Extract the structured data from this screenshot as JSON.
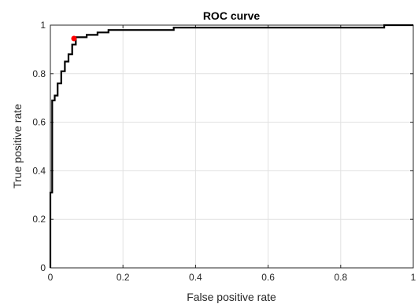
{
  "chart_data": {
    "type": "line",
    "title": "ROC curve",
    "xlabel": "False positive rate",
    "ylabel": "True positive rate",
    "xlim": [
      0,
      1
    ],
    "ylim": [
      0,
      1
    ],
    "grid": true,
    "x_ticks": [
      0,
      0.2,
      0.4,
      0.6,
      0.8,
      1
    ],
    "y_ticks": [
      0,
      0.2,
      0.4,
      0.6,
      0.8,
      1
    ],
    "x_tick_labels": [
      "0",
      "0.2",
      "0.4",
      "0.6",
      "0.8",
      "1"
    ],
    "y_tick_labels": [
      "0",
      "0.2",
      "0.4",
      "0.6",
      "0.8",
      "1"
    ],
    "series": [
      {
        "color": "#000000",
        "x": [
          0,
          0,
          0.005,
          0.005,
          0.012,
          0.012,
          0.02,
          0.02,
          0.03,
          0.03,
          0.04,
          0.04,
          0.05,
          0.05,
          0.06,
          0.06,
          0.07,
          0.07,
          0.1,
          0.1,
          0.13,
          0.13,
          0.16,
          0.16,
          0.34,
          0.34,
          0.92,
          0.92,
          1
        ],
        "y": [
          0,
          0.31,
          0.31,
          0.69,
          0.69,
          0.71,
          0.71,
          0.76,
          0.76,
          0.81,
          0.81,
          0.85,
          0.85,
          0.88,
          0.88,
          0.92,
          0.92,
          0.95,
          0.95,
          0.96,
          0.96,
          0.97,
          0.97,
          0.98,
          0.98,
          0.99,
          0.99,
          1.0,
          1.0
        ]
      }
    ],
    "marker": {
      "x": 0.065,
      "y": 0.945,
      "color": "#ff0000"
    }
  }
}
